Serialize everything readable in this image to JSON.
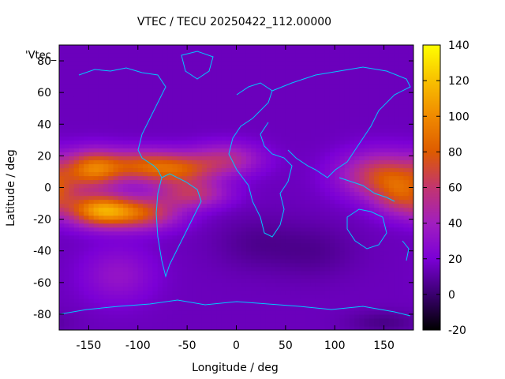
{
  "chart_data": {
    "type": "heatmap",
    "title": "VTEC / TECU 20250422_112.00000",
    "xlabel": "Longitude / deg",
    "ylabel": "Latitude / deg",
    "legend_key": "'Vtec_",
    "xlim": [
      -180,
      180
    ],
    "ylim": [
      -90,
      90
    ],
    "x_ticks": [
      -150,
      -100,
      -50,
      0,
      50,
      100,
      150
    ],
    "y_ticks": [
      -80,
      -60,
      -40,
      -20,
      0,
      20,
      40,
      60,
      80
    ],
    "colorbar": {
      "range": [
        -20,
        140
      ],
      "ticks": [
        -20,
        0,
        20,
        40,
        60,
        80,
        100,
        120,
        140
      ],
      "colors": [
        "#000000",
        "#3a006f",
        "#7b00d6",
        "#a11ebf",
        "#c2356f",
        "#de5b00",
        "#f08a00",
        "#f8c000",
        "#ffff00"
      ]
    },
    "background_level": 15,
    "features": [
      {
        "lon": -145,
        "lat": 12,
        "amplitude": 68,
        "sigma_lon": 20,
        "sigma_lat": 8
      },
      {
        "lon": -140,
        "lat": -14,
        "amplitude": 75,
        "sigma_lon": 22,
        "sigma_lat": 7
      },
      {
        "lon": -95,
        "lat": 14,
        "amplitude": 55,
        "sigma_lon": 28,
        "sigma_lat": 7
      },
      {
        "lon": -100,
        "lat": -16,
        "amplitude": 60,
        "sigma_lon": 28,
        "sigma_lat": 7
      },
      {
        "lon": -55,
        "lat": 11,
        "amplitude": 45,
        "sigma_lon": 25,
        "sigma_lat": 7
      },
      {
        "lon": -45,
        "lat": -4,
        "amplitude": 40,
        "sigma_lon": 25,
        "sigma_lat": 6
      },
      {
        "lon": -10,
        "lat": 18,
        "amplitude": 35,
        "sigma_lon": 25,
        "sigma_lat": 7
      },
      {
        "lon": 150,
        "lat": 8,
        "amplitude": 55,
        "sigma_lon": 30,
        "sigma_lat": 10
      },
      {
        "lon": 170,
        "lat": -5,
        "amplitude": 45,
        "sigma_lon": 20,
        "sigma_lat": 9
      },
      {
        "lon": -120,
        "lat": -55,
        "amplitude": 18,
        "sigma_lon": 25,
        "sigma_lat": 12
      },
      {
        "lon": 20,
        "lat": -35,
        "amplitude": -8,
        "sigma_lon": 30,
        "sigma_lat": 12
      },
      {
        "lon": 80,
        "lat": -40,
        "amplitude": -8,
        "sigma_lon": 30,
        "sigma_lat": 12
      },
      {
        "lon": 150,
        "lat": -85,
        "amplitude": -10,
        "sigma_lon": 25,
        "sigma_lat": 5
      }
    ]
  }
}
